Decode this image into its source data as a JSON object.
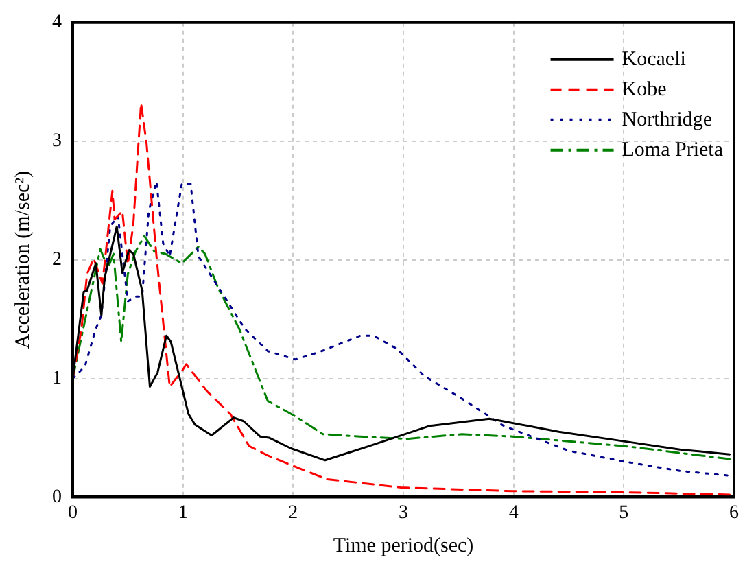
{
  "chart_data": {
    "type": "line",
    "xlabel": "Time period(sec)",
    "ylabel": "Acceleration (m/sec²)",
    "xlim": [
      0,
      6
    ],
    "xticks": [
      0,
      1,
      2,
      3,
      4,
      5,
      6
    ],
    "ylim": [
      0,
      4
    ],
    "yticks": [
      0,
      1,
      2,
      3,
      4
    ],
    "grid": true,
    "legend": "top right",
    "marker": "none",
    "series": [
      {
        "name": "Kocaeli",
        "color": "#000000",
        "line_style": "solid",
        "x": [
          0,
          0.1,
          0.13,
          0.21,
          0.26,
          0.29,
          0.4,
          0.45,
          0.51,
          0.55,
          0.63,
          0.7,
          0.77,
          0.85,
          0.89,
          1.05,
          1.11,
          1.26,
          1.46,
          1.55,
          1.7,
          1.78,
          1.98,
          2.29,
          2.69,
          3.24,
          3.78,
          3.9,
          4.41,
          5.0,
          5.51,
          5.96
        ],
        "values": [
          1.0,
          1.73,
          1.74,
          1.97,
          1.53,
          1.85,
          2.28,
          1.89,
          2.08,
          2.05,
          1.74,
          0.93,
          1.05,
          1.36,
          1.31,
          0.7,
          0.61,
          0.52,
          0.67,
          0.64,
          0.51,
          0.5,
          0.41,
          0.31,
          0.43,
          0.6,
          0.66,
          0.64,
          0.55,
          0.47,
          0.4,
          0.36
        ]
      },
      {
        "name": "Kobe",
        "color": "#ff0000",
        "line_style": "dashed",
        "x": [
          0,
          0.08,
          0.13,
          0.19,
          0.27,
          0.36,
          0.38,
          0.45,
          0.5,
          0.55,
          0.62,
          0.67,
          0.76,
          0.88,
          0.99,
          1.03,
          1.22,
          1.43,
          1.6,
          1.77,
          2.06,
          2.31,
          2.98,
          3.99,
          5.0,
          5.96
        ],
        "values": [
          1.0,
          1.42,
          1.88,
          2.01,
          1.8,
          2.58,
          2.34,
          2.41,
          1.96,
          2.3,
          3.32,
          2.98,
          2.03,
          0.93,
          1.06,
          1.12,
          0.89,
          0.7,
          0.43,
          0.35,
          0.24,
          0.15,
          0.08,
          0.05,
          0.04,
          0.02
        ]
      },
      {
        "name": "Northridge",
        "color": "#00008b",
        "line_style": "dotted",
        "x": [
          0,
          0.11,
          0.21,
          0.26,
          0.34,
          0.41,
          0.5,
          0.57,
          0.63,
          0.69,
          0.76,
          0.82,
          0.88,
          0.99,
          1.07,
          1.14,
          1.3,
          1.56,
          1.77,
          2.02,
          2.23,
          2.61,
          2.73,
          2.94,
          3.19,
          3.53,
          3.91,
          4.5,
          5.0,
          5.51,
          5.96
        ],
        "values": [
          1.0,
          1.1,
          1.42,
          1.53,
          2.28,
          2.37,
          1.65,
          1.69,
          1.69,
          2.41,
          2.66,
          2.14,
          2.03,
          2.64,
          2.64,
          2.03,
          1.8,
          1.42,
          1.23,
          1.16,
          1.22,
          1.36,
          1.36,
          1.25,
          1.02,
          0.83,
          0.6,
          0.39,
          0.3,
          0.22,
          0.18
        ]
      },
      {
        "name": "Loma Prieta",
        "color": "#008000",
        "line_style": "dashdot",
        "x": [
          0,
          0.13,
          0.25,
          0.32,
          0.37,
          0.44,
          0.5,
          0.57,
          0.65,
          0.74,
          0.84,
          0.99,
          1.14,
          1.2,
          1.32,
          1.51,
          1.77,
          2.02,
          2.27,
          2.61,
          3.03,
          3.53,
          3.99,
          5.0,
          5.96
        ],
        "values": [
          1.0,
          1.57,
          2.09,
          1.93,
          2.05,
          1.31,
          1.88,
          2.07,
          2.2,
          2.07,
          2.05,
          1.97,
          2.11,
          2.05,
          1.76,
          1.42,
          0.81,
          0.68,
          0.53,
          0.51,
          0.49,
          0.53,
          0.51,
          0.43,
          0.32
        ]
      }
    ]
  }
}
